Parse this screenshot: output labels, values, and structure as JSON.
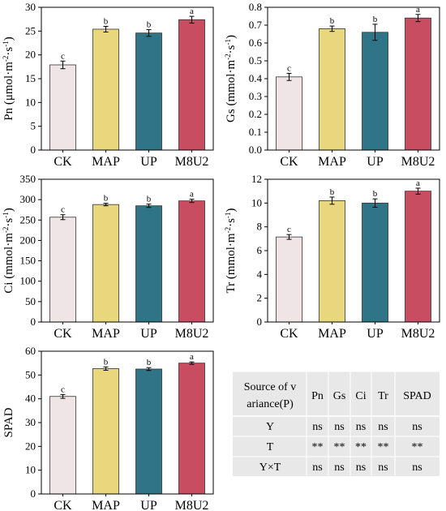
{
  "colors": {
    "CK": "#efe4e6",
    "MAP": "#e8d77d",
    "UP": "#2f7587",
    "M8U2": "#c84d60",
    "table_bg": "#e8e8e8"
  },
  "chart_data": [
    {
      "type": "bar",
      "categories": [
        "CK",
        "MAP",
        "UP",
        "M8U2"
      ],
      "values": [
        17.9,
        25.4,
        24.6,
        27.4
      ],
      "errors": [
        0.8,
        0.6,
        0.7,
        0.7
      ],
      "letters": [
        "c",
        "b",
        "b",
        "a"
      ],
      "ylabel": {
        "main": "Pn (μmol·m",
        "sup1": "-2",
        "mid": "·s",
        "sup2": "-1",
        "end": ")"
      },
      "ylim": [
        0,
        30
      ],
      "yticks": [
        "0",
        "5",
        "10",
        "15",
        "20",
        "25",
        "30"
      ]
    },
    {
      "type": "bar",
      "categories": [
        "CK",
        "MAP",
        "UP",
        "M8U2"
      ],
      "values": [
        0.41,
        0.68,
        0.66,
        0.74
      ],
      "errors": [
        0.02,
        0.015,
        0.045,
        0.02
      ],
      "letters": [
        "c",
        "b",
        "b",
        "a"
      ],
      "ylabel": {
        "main": "Gs (mmol·m",
        "sup1": "-2",
        "mid": "·s",
        "sup2": "-1",
        "end": ")"
      },
      "ylim": [
        0,
        0.8
      ],
      "yticks": [
        "0.0",
        "0.1",
        "0.2",
        "0.3",
        "0.4",
        "0.5",
        "0.6",
        "0.7",
        "0.8"
      ]
    },
    {
      "type": "bar",
      "categories": [
        "CK",
        "MAP",
        "UP",
        "M8U2"
      ],
      "values": [
        257,
        288,
        285,
        297
      ],
      "errors": [
        6,
        3,
        4,
        4
      ],
      "letters": [
        "c",
        "b",
        "b",
        "a"
      ],
      "ylabel": {
        "main": "Ci (mmol·m",
        "sup1": "-2",
        "mid": "·s",
        "sup2": "-1",
        "end": ")"
      },
      "ylim": [
        0,
        350
      ],
      "yticks": [
        "0",
        "50",
        "100",
        "150",
        "200",
        "250",
        "300",
        "350"
      ]
    },
    {
      "type": "bar",
      "categories": [
        "CK",
        "MAP",
        "UP",
        "M8U2"
      ],
      "values": [
        7.15,
        10.2,
        10.0,
        11.0
      ],
      "errors": [
        0.2,
        0.3,
        0.35,
        0.25
      ],
      "letters": [
        "c",
        "b",
        "b",
        "a"
      ],
      "ylabel": {
        "main": "Tr (mmol·m",
        "sup1": "-2",
        "mid": "·s",
        "sup2": "-1",
        "end": ")"
      },
      "ylim": [
        0,
        12
      ],
      "yticks": [
        "0",
        "2",
        "4",
        "6",
        "8",
        "10",
        "12"
      ]
    },
    {
      "type": "bar",
      "categories": [
        "CK",
        "MAP",
        "UP",
        "M8U2"
      ],
      "values": [
        41,
        52.7,
        52.5,
        55.0
      ],
      "errors": [
        0.8,
        0.7,
        0.6,
        0.5
      ],
      "letters": [
        "c",
        "b",
        "b",
        "a"
      ],
      "ylabel": {
        "main": "SPAD"
      },
      "ylim": [
        0,
        60
      ],
      "yticks": [
        "0",
        "10",
        "20",
        "30",
        "40",
        "50",
        "60"
      ]
    }
  ],
  "table": {
    "header_line1": "Source of v",
    "header_line2": "ariance(P)",
    "columns": [
      "Pn",
      "Gs",
      "Ci",
      "Tr",
      "SPAD"
    ],
    "rows": [
      {
        "label": "Y",
        "cells": [
          "ns",
          "ns",
          "ns",
          "ns",
          "ns"
        ]
      },
      {
        "label": "T",
        "cells": [
          "**",
          "**",
          "**",
          "**",
          "**"
        ]
      },
      {
        "label": "Y×T",
        "cells": [
          "ns",
          "ns",
          "ns",
          "ns",
          "ns"
        ]
      }
    ]
  }
}
